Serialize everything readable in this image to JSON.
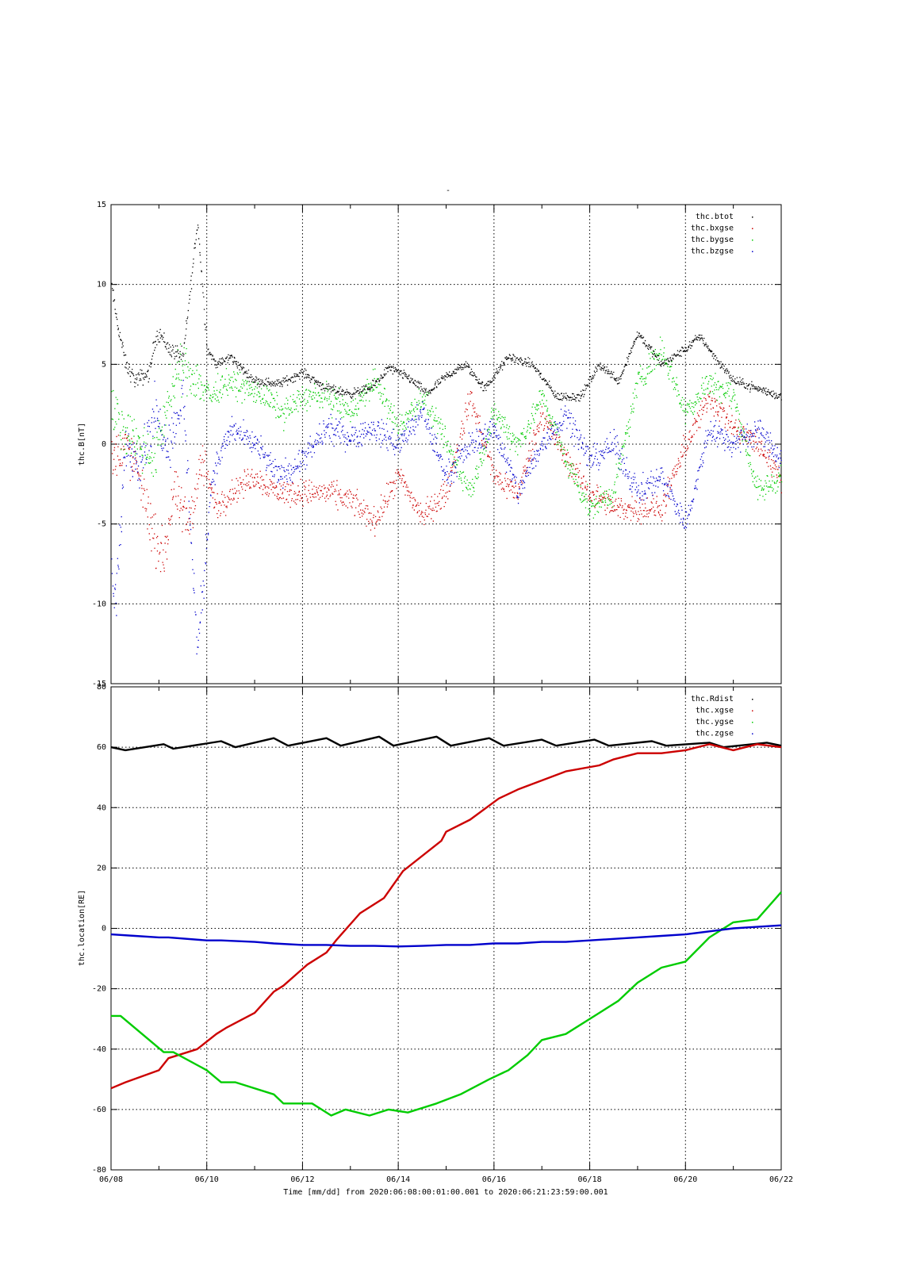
{
  "page_title": "-",
  "xlabel": "Time [mm/dd]  from 2020:06:08:00:01:00.001  to  2020:06:21:23:59:00.001",
  "x_ticks": [
    "06/08",
    "06/10",
    "06/12",
    "06/14",
    "06/16",
    "06/18",
    "06/20",
    "06/22"
  ],
  "chart_data": [
    {
      "type": "scatter",
      "ylabel": "thc.B[nT]",
      "ylim": [
        -15,
        15
      ],
      "xlim": [
        0,
        14
      ],
      "x_unit": "days from 06/08",
      "grid": true,
      "legend_position": "top-right",
      "y_ticks": [
        "15",
        "10",
        "5",
        "0",
        "-5",
        "-10",
        "-15"
      ],
      "series": [
        {
          "name": "thc.btot",
          "color": "#000000",
          "x": [
            0,
            0.1,
            0.3,
            0.5,
            0.8,
            0.9,
            1.0,
            1.2,
            1.5,
            1.8,
            2.0,
            2.2,
            2.5,
            2.8,
            3.0,
            3.5,
            4.0,
            4.5,
            5.0,
            5.4,
            5.8,
            6.2,
            6.6,
            7.0,
            7.4,
            7.8,
            8.3,
            8.8,
            9.3,
            9.8,
            10.2,
            10.6,
            11.0,
            11.5,
            12.0,
            12.3,
            12.6,
            13.0,
            13.5,
            14.0
          ],
          "y": [
            10,
            8,
            5,
            4,
            4.5,
            6.5,
            7,
            6,
            5.5,
            14,
            6,
            5,
            5.5,
            4.5,
            4,
            3.8,
            4.5,
            3.5,
            3.2,
            3.5,
            4.8,
            4.2,
            3.2,
            4.3,
            5,
            3.5,
            5.5,
            5,
            3,
            3,
            5,
            4,
            7,
            5,
            6,
            6.8,
            5.5,
            4,
            3.5,
            3
          ]
        },
        {
          "name": "thc.bxgse",
          "color": "#cc0000",
          "x": [
            0,
            0.3,
            0.6,
            0.9,
            1.1,
            1.3,
            1.6,
            1.9,
            2.2,
            2.5,
            3.0,
            3.5,
            4.0,
            4.5,
            5.0,
            5.5,
            6.0,
            6.5,
            7.0,
            7.5,
            8.0,
            8.5,
            9.0,
            9.5,
            10.0,
            10.5,
            11.0,
            11.5,
            12.0,
            12.5,
            13.0,
            13.5,
            14.0
          ],
          "y": [
            -1,
            0,
            -2,
            -6,
            -7,
            -3,
            -5,
            -1,
            -4,
            -3,
            -2,
            -3,
            -3,
            -3,
            -3.5,
            -4.8,
            -2,
            -4.5,
            -3,
            3,
            -2,
            -3,
            2,
            -1,
            -3,
            -4,
            -4,
            -4,
            0,
            3,
            1,
            0,
            -2
          ]
        },
        {
          "name": "thc.bygse",
          "color": "#00cc00",
          "x": [
            0,
            0.3,
            0.6,
            0.9,
            1.2,
            1.5,
            1.8,
            2.1,
            2.4,
            2.8,
            3.2,
            3.6,
            4.0,
            4.5,
            5.0,
            5.5,
            6.0,
            6.5,
            7.0,
            7.5,
            8.0,
            8.5,
            9.0,
            9.5,
            10.0,
            10.5,
            11.0,
            11.5,
            12.0,
            12.5,
            13.0,
            13.5,
            14.0
          ],
          "y": [
            2,
            1,
            0,
            -1,
            3,
            5,
            4,
            3,
            4,
            3.5,
            3,
            2,
            3,
            3,
            2,
            4,
            1,
            3,
            0,
            -3,
            2,
            0,
            3,
            -1,
            -4,
            -3,
            4,
            6,
            2,
            4,
            3,
            -3,
            -2
          ]
        },
        {
          "name": "thc.bzgse",
          "color": "#0000cc",
          "x": [
            0,
            0.1,
            0.3,
            0.6,
            0.9,
            1.2,
            1.5,
            1.8,
            2.1,
            2.5,
            3.0,
            3.5,
            4.0,
            4.5,
            5.0,
            5.5,
            6.0,
            6.5,
            7.0,
            7.5,
            8.0,
            8.5,
            9.0,
            9.5,
            10.0,
            10.5,
            11.0,
            11.5,
            12.0,
            12.5,
            13.0,
            13.5,
            14.0
          ],
          "y": [
            -8,
            -10,
            0,
            -1,
            2,
            0,
            3,
            -13,
            -2,
            1,
            0,
            -2,
            -1,
            1,
            0.5,
            1,
            0,
            2,
            -2,
            0,
            1,
            -3,
            0,
            2,
            -1,
            0,
            -3,
            -2,
            -5,
            1,
            0,
            1,
            -1
          ]
        }
      ]
    },
    {
      "type": "line",
      "ylabel": "thc.location[RE]",
      "ylim": [
        -80,
        80
      ],
      "xlim": [
        0,
        14
      ],
      "x_unit": "days from 06/08",
      "grid": true,
      "legend_position": "top-right",
      "y_ticks": [
        "80",
        "60",
        "40",
        "20",
        "0",
        "-20",
        "-40",
        "-60",
        "-80"
      ],
      "series": [
        {
          "name": "thc.Rdist",
          "color": "#000000",
          "x": [
            0,
            0.3,
            1.1,
            1.3,
            2.3,
            2.6,
            3.4,
            3.7,
            4.5,
            4.8,
            5.6,
            5.9,
            6.8,
            7.1,
            7.9,
            8.2,
            9.0,
            9.3,
            10.1,
            10.4,
            11.3,
            11.6,
            12.5,
            12.8,
            13.7,
            14.0
          ],
          "y": [
            60,
            59,
            61,
            59.5,
            62,
            60,
            63,
            60.5,
            63,
            60.5,
            63.5,
            60.5,
            63.5,
            60.5,
            63,
            60.5,
            62.5,
            60.5,
            62.5,
            60.5,
            62,
            60.5,
            61.5,
            60,
            61.5,
            60.5
          ]
        },
        {
          "name": "thc.xgse",
          "color": "#cc0000",
          "x": [
            0,
            0.3,
            1.0,
            1.2,
            1.8,
            2.2,
            2.4,
            3.0,
            3.4,
            3.6,
            4.1,
            4.5,
            4.7,
            5.2,
            5.7,
            6.1,
            6.9,
            7.0,
            7.5,
            8.1,
            8.5,
            9.0,
            9.5,
            10.2,
            10.5,
            11.0,
            11.5,
            12.0,
            12.5,
            13.0,
            13.5,
            14.0
          ],
          "y": [
            -53,
            -51,
            -47,
            -43,
            -40,
            -35,
            -33,
            -28,
            -21,
            -19,
            -12,
            -8,
            -4,
            5,
            10,
            19,
            29,
            32,
            36,
            43,
            46,
            49,
            52,
            54,
            56,
            58,
            58,
            59,
            61,
            59,
            61,
            60
          ]
        },
        {
          "name": "thc.ygse",
          "color": "#00cc00",
          "x": [
            0,
            0.2,
            1.1,
            1.3,
            2.0,
            2.3,
            2.6,
            3.4,
            3.6,
            4.2,
            4.6,
            4.9,
            5.4,
            5.8,
            6.2,
            6.8,
            7.3,
            7.9,
            8.3,
            8.7,
            9.0,
            9.5,
            10.2,
            10.6,
            11.0,
            11.5,
            12.0,
            12.5,
            13.0,
            13.5,
            14.0
          ],
          "y": [
            -29,
            -29,
            -41,
            -41,
            -47,
            -51,
            -51,
            -55,
            -58,
            -58,
            -62,
            -60,
            -62,
            -60,
            -61,
            -58,
            -55,
            -50,
            -47,
            -42,
            -37,
            -35,
            -28,
            -24,
            -18,
            -13,
            -11,
            -3,
            2,
            3,
            12
          ]
        },
        {
          "name": "thc.zgse",
          "color": "#0000cc",
          "x": [
            0,
            0.5,
            1.0,
            1.2,
            2.0,
            2.3,
            3.0,
            3.4,
            4.0,
            4.5,
            5.0,
            5.5,
            6.0,
            6.5,
            7.0,
            7.5,
            8.0,
            8.5,
            9.0,
            9.5,
            10.0,
            10.5,
            11.0,
            11.5,
            12.0,
            12.5,
            13.0,
            13.5,
            14.0
          ],
          "y": [
            -2,
            -2.5,
            -3,
            -3,
            -4,
            -4,
            -4.5,
            -5,
            -5.5,
            -5.5,
            -5.8,
            -5.8,
            -6,
            -5.8,
            -5.5,
            -5.5,
            -5,
            -5,
            -4.5,
            -4.5,
            -4,
            -3.5,
            -3,
            -2.5,
            -2,
            -1,
            0,
            0.5,
            1
          ]
        }
      ]
    }
  ]
}
